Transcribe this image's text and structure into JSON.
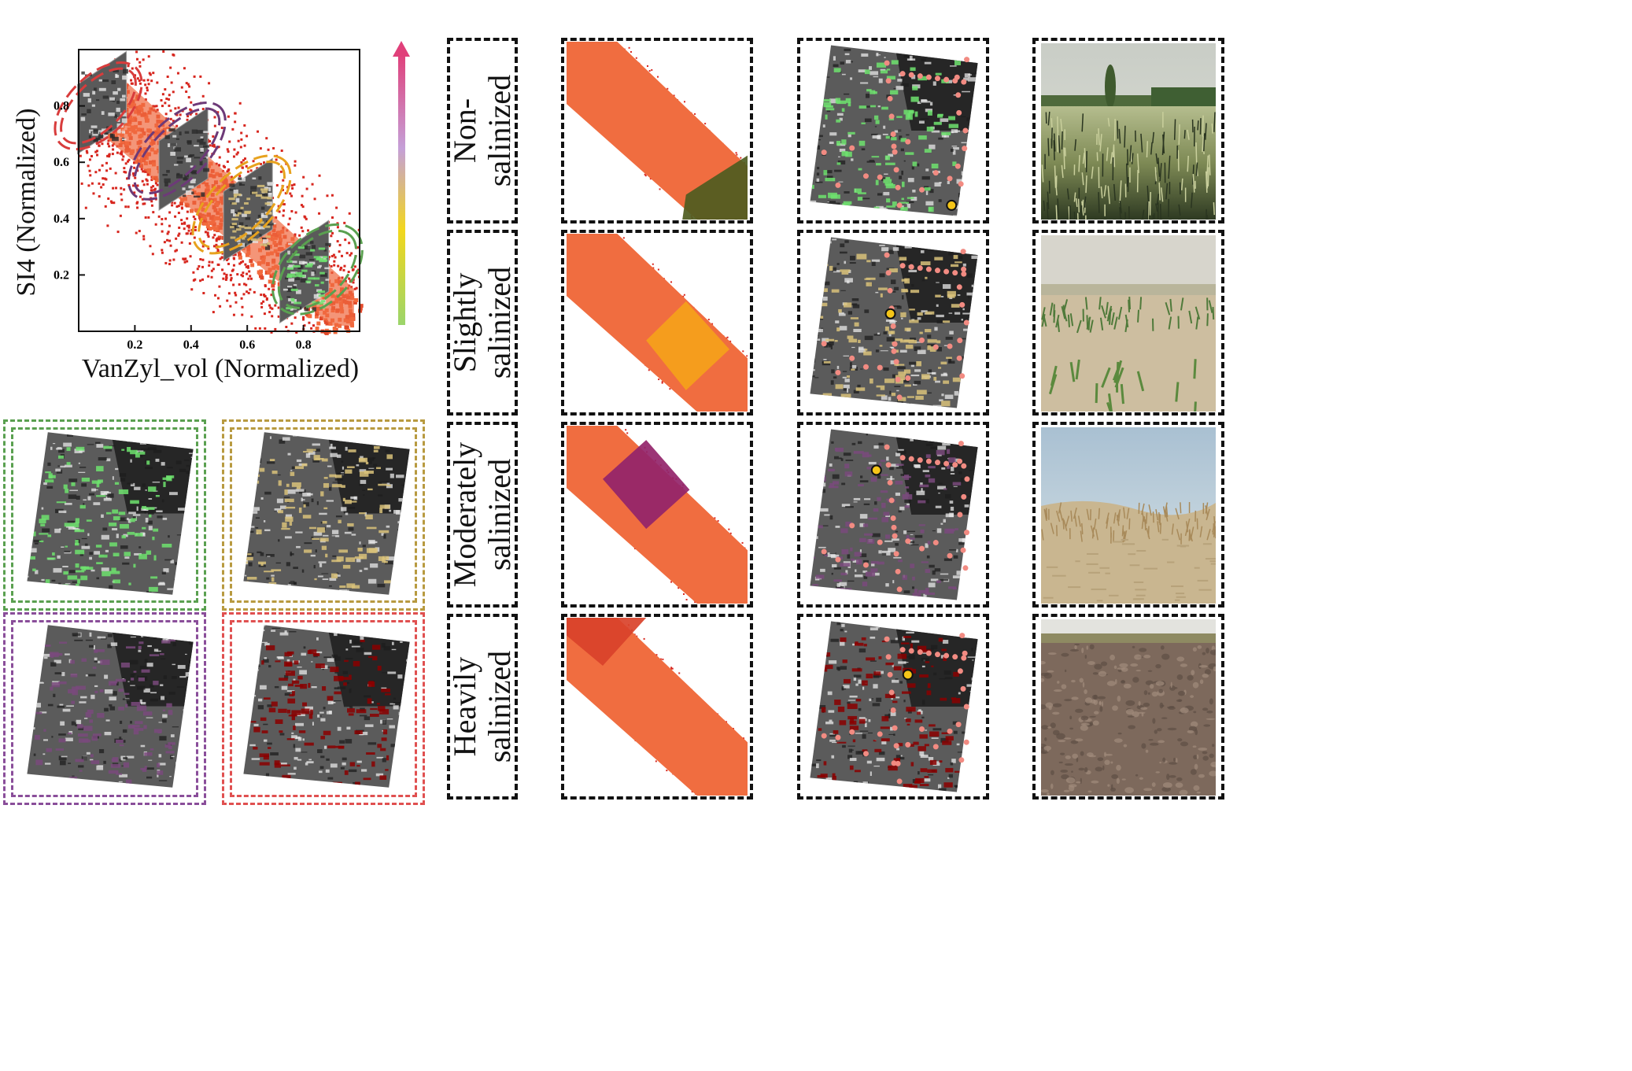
{
  "scatter": {
    "xlabel": "VanZyl_vol (Normalized)",
    "ylabel": "SI4 (Normalized)",
    "xticks": [
      "0.2",
      "0.4",
      "0.6",
      "0.8"
    ],
    "yticks": [
      "0.2",
      "0.4",
      "0.6",
      "0.8"
    ]
  },
  "classes": [
    {
      "line1": "Non-",
      "line2": "salinized",
      "color": "#5aa02c"
    },
    {
      "line1": "Slightly",
      "line2": "salinized",
      "color": "#e8a317"
    },
    {
      "line1": "Moderately",
      "line2": "salinized",
      "color": "#8b2f6b"
    },
    {
      "line1": "Heavily",
      "line2": "salinized",
      "color": "#c0392b"
    }
  ],
  "overlay_colors": {
    "non": "#6fe36f",
    "slight": "#d9c27a",
    "moderate": "#7a4a7c",
    "heavy": "#8b0000"
  },
  "box_border_colors": {
    "green": "#5aa050",
    "gold": "#b89a40",
    "purple": "#8a4e9a",
    "red": "#e05050"
  },
  "chart_data": {
    "type": "heatmap",
    "title": "",
    "xlabel": "VanZyl_vol (Normalized)",
    "ylabel": "SI4 (Normalized)",
    "xlim": [
      0,
      1
    ],
    "ylim": [
      0,
      1
    ],
    "xticks": [
      0.2,
      0.4,
      0.6,
      0.8
    ],
    "yticks": [
      0.2,
      0.4,
      0.6,
      0.8
    ],
    "trend": "density band running from upper-left (x~0.05, y~0.85) to lower-right (x~0.95, y~0.05)",
    "regions": [
      {
        "class": "Heavily salinized",
        "center": [
          0.08,
          0.82
        ],
        "color": "#c0392b"
      },
      {
        "class": "Moderately salinized",
        "center": [
          0.3,
          0.65
        ],
        "color": "#8b2f6b"
      },
      {
        "class": "Slightly salinized",
        "center": [
          0.55,
          0.45
        ],
        "color": "#e8a317"
      },
      {
        "class": "Non-salinized",
        "center": [
          0.78,
          0.22
        ],
        "color": "#5aa02c"
      }
    ],
    "colorbar": {
      "orientation": "vertical",
      "colors": [
        "#9bd56b",
        "#f2d71d",
        "#c5a0d8",
        "#e0407a"
      ],
      "arrow": "up"
    }
  }
}
